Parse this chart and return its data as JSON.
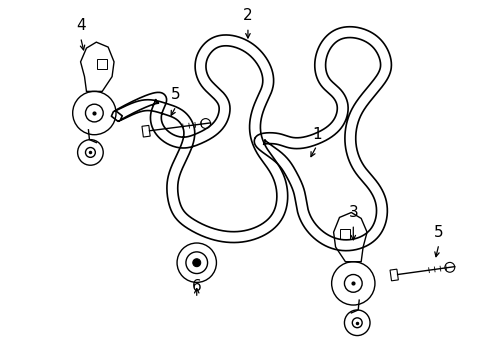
{
  "background_color": "#ffffff",
  "line_color": "#000000",
  "figsize": [
    4.89,
    3.6
  ],
  "dpi": 100,
  "label_fontsize": 11,
  "lw_belt": 1.2,
  "lw_part": 1.0
}
